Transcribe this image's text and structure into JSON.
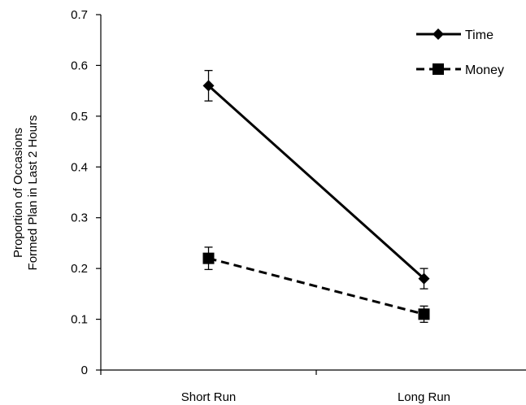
{
  "chart_data": {
    "type": "line",
    "title": "",
    "xlabel": "",
    "ylabel": [
      "Proportion of Occasions",
      "Formed Plan in Last 2 Hours"
    ],
    "categories": [
      "Short Run",
      "Long Run"
    ],
    "ylim": [
      0,
      0.7
    ],
    "yticks": [
      0,
      0.1,
      0.2,
      0.3,
      0.4,
      0.5,
      0.6,
      0.7
    ],
    "ytick_labels": [
      "0",
      "0.1",
      "0.2",
      "0.3",
      "0.4",
      "0.5",
      "0.6",
      "0.7"
    ],
    "grid": false,
    "legend_position": "top-right",
    "series": [
      {
        "name": "Time",
        "values": [
          0.56,
          0.18
        ],
        "error": [
          0.03,
          0.02
        ],
        "line_style": "solid",
        "marker": "diamond",
        "color": "#000000"
      },
      {
        "name": "Money",
        "values": [
          0.22,
          0.11
        ],
        "error": [
          0.022,
          0.016
        ],
        "line_style": "dashed",
        "marker": "square",
        "color": "#000000"
      }
    ]
  }
}
